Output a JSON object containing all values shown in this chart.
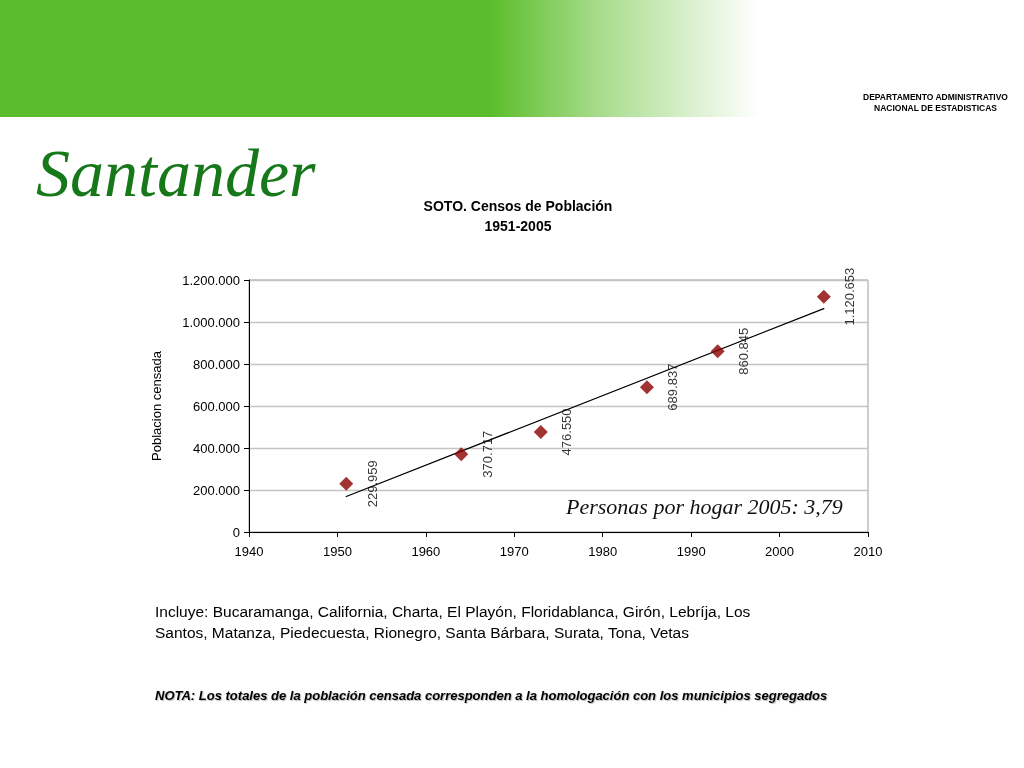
{
  "chart_data": {
    "type": "scatter",
    "title": "Santander",
    "subtitle": "SOTO. Censos de Población\n1951-2005",
    "ylabel": "Poblacion censada",
    "x": [
      1951,
      1964,
      1973,
      1985,
      1993,
      2005
    ],
    "series": [
      {
        "color": "#8b0000",
        "values": [
          229959,
          370717,
          476550,
          689837,
          860845,
          1120653
        ],
        "value_labels": [
          "229.959",
          "370.717",
          "476.550",
          "689.837",
          "860.845",
          "1.120.653"
        ]
      },
      {
        "type": "line",
        "color": "#000000",
        "x": [
          1951,
          2005
        ],
        "values": [
          169000,
          1064000
        ],
        "marker": "none"
      }
    ],
    "marker": "diamond",
    "xlim": [
      1940,
      2010
    ],
    "xticks": [
      1940,
      1950,
      1960,
      1970,
      1980,
      1990,
      2000,
      2010
    ],
    "ylim": [
      0,
      1200000
    ],
    "yticks": [
      0,
      {
        "value": 200000,
        "label": "200.000"
      },
      {
        "value": 400000,
        "label": "400.000"
      },
      {
        "value": 600000,
        "label": "600.000"
      },
      {
        "value": 800000,
        "label": "800.000"
      },
      {
        "value": 1000000,
        "label": "1.000.000"
      },
      {
        "value": 1200000,
        "label": "1.200.000"
      }
    ],
    "grid": "y",
    "annotations": [
      "Personas por hogar 2005: 3,79",
      "Incluye: Bucaramanga, California, Charta, El Playón, Floridablanca, Girón, Lebríja, Los Santos, Matanza, Piedecuesta, Rionegro, Santa Bárbara, Surata, Tona, Vetas",
      "NOTA: Los totales de la población censada corresponden a la homologación con los municipios segregados",
      "DEPARTAMENTO ADMINISTRATIVO NACIONAL DE ESTADISTICAS"
    ]
  }
}
